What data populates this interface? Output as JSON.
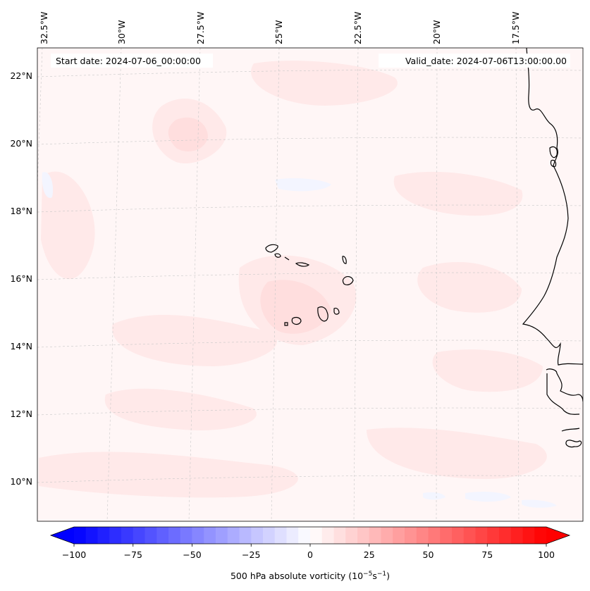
{
  "map": {
    "start_date_label": "Start date: 2024-07-06_00:00:00",
    "valid_date_label": "Valid_date: 2024-07-06T13:00:00.00",
    "longitude_labels": [
      "32.5°W",
      "30°W",
      "27.5°W",
      "25°W",
      "22.5°W",
      "20°W",
      "17.5°W"
    ],
    "latitude_labels": [
      "22°N",
      "20°N",
      "18°N",
      "16°N",
      "14°N",
      "12°N",
      "10°N"
    ]
  },
  "colorbar": {
    "tick_labels": [
      "−100",
      "−75",
      "−50",
      "−25",
      "0",
      "25",
      "50",
      "75",
      "100"
    ],
    "label_main": "500 hPa absolute vorticity (10",
    "label_exp1": "−5",
    "label_mid": "s",
    "label_exp2": "−1",
    "label_end": ")",
    "min": -100,
    "max": 100,
    "steps": 40,
    "colors": {
      "low": "#0000ff",
      "mid": "#ffffff",
      "high": "#ff0000"
    }
  },
  "colors": {
    "coastline": "#000000",
    "field_base": "#fff6f6",
    "field_light_red": "#ffe9e9",
    "field_red": "#ffdede",
    "field_light_blue": "#f3f5ff"
  }
}
